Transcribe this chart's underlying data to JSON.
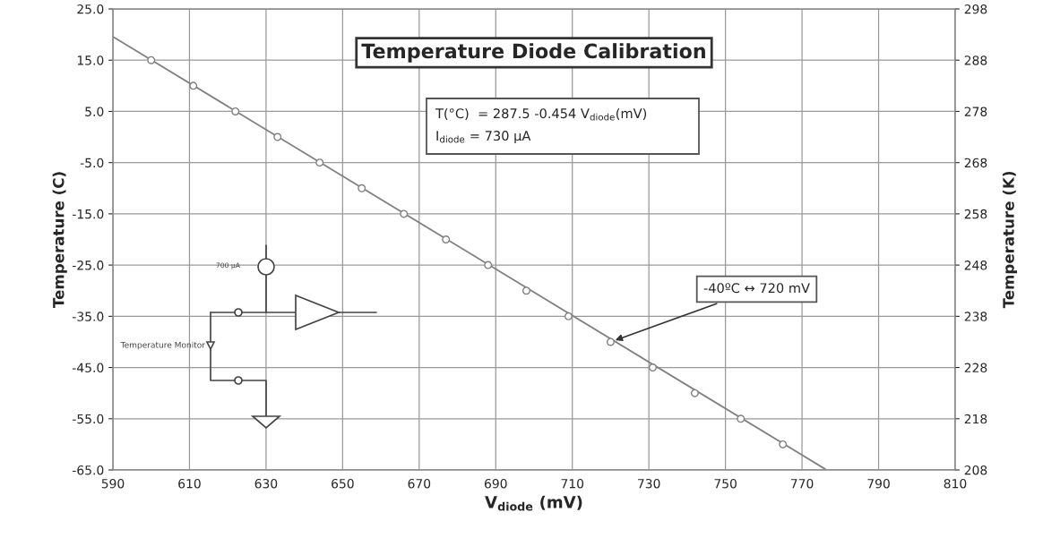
{
  "chart_data": {
    "type": "scatter",
    "title": "Temperature Diode Calibration",
    "xlabel": "V$_{diode}$ (mV)",
    "ylabel": "Temperature (C)",
    "y2label": "Temperature (K)",
    "x": [
      600,
      611,
      622,
      633,
      644,
      655,
      666,
      677,
      688,
      698,
      709,
      720,
      731,
      742,
      754,
      765
    ],
    "series": [
      {
        "color": "#808080",
        "marker": "circle",
        "values": [
          15,
          10,
          5,
          0,
          -5,
          -10,
          -15,
          -20,
          -25,
          -30,
          -35,
          -40,
          -45,
          -50,
          -55,
          -60
        ]
      },
      {
        "type": "line",
        "color": "#808080",
        "marker": "none",
        "line_style": "solid",
        "x": [
          590,
          776
        ],
        "values": [
          19.6,
          -64.8
        ]
      }
    ],
    "xlim": [
      590,
      810
    ],
    "xticks": [
      590,
      610,
      630,
      650,
      670,
      690,
      710,
      730,
      750,
      770,
      790,
      810
    ],
    "ylim": [
      -65,
      25
    ],
    "yticks": [
      {
        "value": 25,
        "label": "25.0"
      },
      {
        "value": 15,
        "label": "15.0"
      },
      {
        "value": 5,
        "label": "5.0"
      },
      {
        "value": -5,
        "label": "-5.0"
      },
      {
        "value": -15,
        "label": "-15.0"
      },
      {
        "value": -25,
        "label": "-25.0"
      },
      {
        "value": -35,
        "label": "-35.0"
      },
      {
        "value": -45,
        "label": "-45.0"
      },
      {
        "value": -55,
        "label": "-55.0"
      },
      {
        "value": -65,
        "label": "-65.0"
      }
    ],
    "y2lim": [
      208,
      298
    ],
    "y2ticks": [
      208,
      218,
      228,
      238,
      248,
      258,
      268,
      278,
      288,
      298
    ],
    "grid": true,
    "legend": false,
    "annotations": [
      "T(°C)  = 287.5 -0.454 V$_{diode}$(mV)",
      "I$_{diode}$ = 730 µA",
      {
        "text": "-40ºC ↔ 720 mV",
        "x": 720,
        "y": -40
      },
      "700 µA",
      "Temperature Monitor"
    ]
  }
}
